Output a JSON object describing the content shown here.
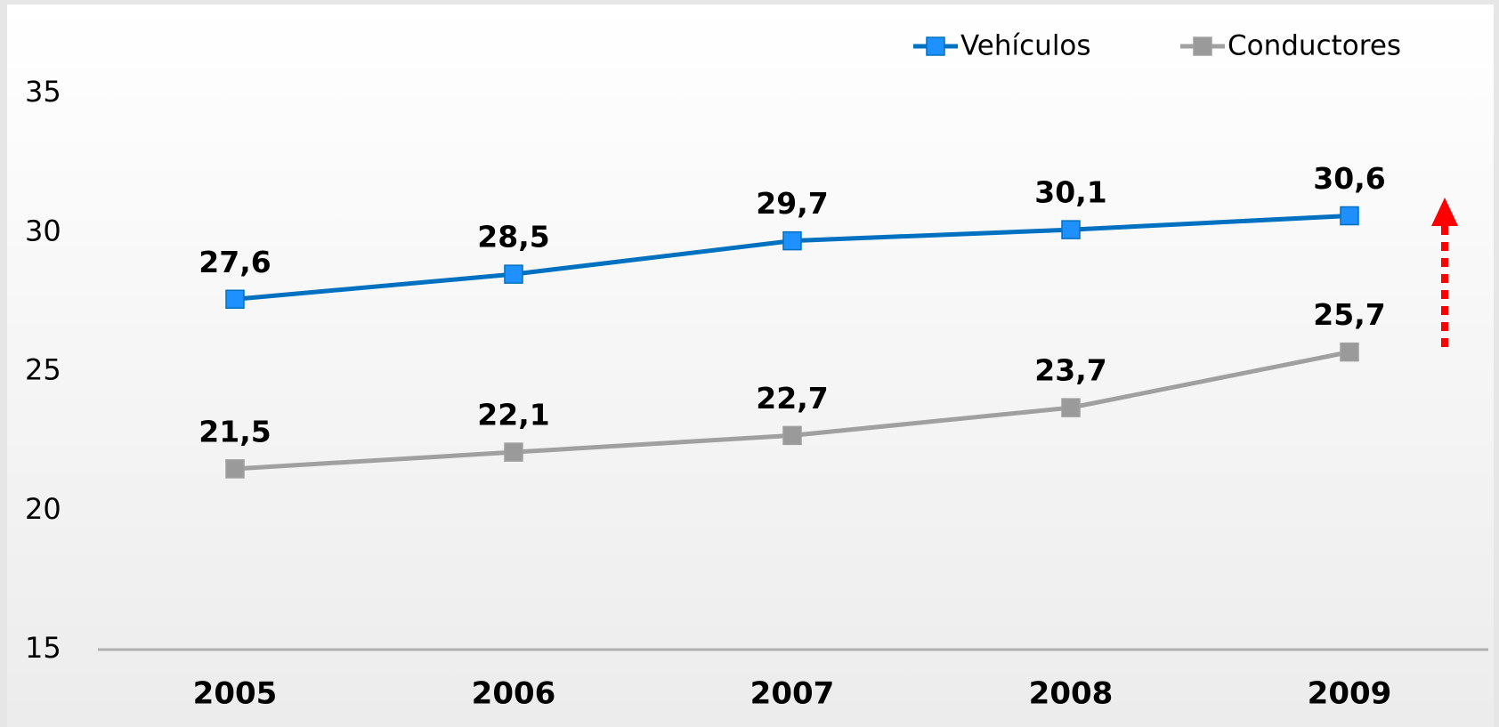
{
  "chart_data": {
    "type": "line",
    "categories": [
      "2005",
      "2006",
      "2007",
      "2008",
      "2009"
    ],
    "series": [
      {
        "name": "Vehículos",
        "color": "#0070c0",
        "marker_color": "#1e90ff",
        "values": [
          27.6,
          28.5,
          29.7,
          30.1,
          30.6
        ],
        "value_labels": [
          "27,6",
          "28,5",
          "29,7",
          "30,1",
          "30,6"
        ]
      },
      {
        "name": "Conductores",
        "color": "#a0a0a0",
        "marker_color": "#9a9a9a",
        "values": [
          21.5,
          22.1,
          22.7,
          23.7,
          25.7
        ],
        "value_labels": [
          "21,5",
          "22,1",
          "22,7",
          "23,7",
          "25,7"
        ]
      }
    ],
    "ylim": [
      15,
      35
    ],
    "yticks": [
      15,
      20,
      25,
      30,
      35
    ],
    "grid": false,
    "legend": "top-right"
  }
}
